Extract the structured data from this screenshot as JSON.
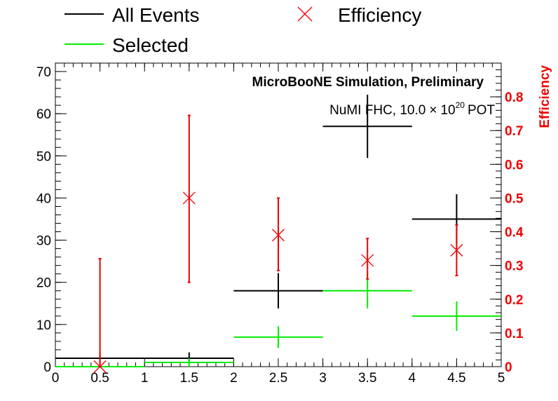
{
  "chart_data": {
    "type": "scatter",
    "legend": {
      "placement": "top",
      "entries": [
        {
          "label": "All Events",
          "marker": "line",
          "color": "#000000"
        },
        {
          "label": "Efficiency",
          "marker": "cross",
          "color": "#ee0000"
        },
        {
          "label": "Selected",
          "marker": "line",
          "color": "#00ee00"
        }
      ]
    },
    "annotations": {
      "title": "MicroBooNE Simulation, Preliminary",
      "pot_prefix": "NuMI FHC, 10.0",
      "pot_times": "×",
      "pot_base": "10",
      "pot_exp": "20",
      "pot_suffix": "POT"
    },
    "x_axis": {
      "range": [
        0,
        5
      ],
      "ticks": [
        "0",
        "0.5",
        "1",
        "1.5",
        "2",
        "2.5",
        "3",
        "3.5",
        "4",
        "4.5",
        "5"
      ]
    },
    "y_axis_left": {
      "range": [
        0,
        72
      ],
      "ticks": [
        "0",
        "10",
        "20",
        "30",
        "40",
        "50",
        "60",
        "70"
      ]
    },
    "y_axis_right": {
      "label": "Efficiency",
      "range": [
        0,
        0.9
      ],
      "ticks": [
        "0",
        "0.1",
        "0.2",
        "0.3",
        "0.4",
        "0.5",
        "0.6",
        "0.7",
        "0.8"
      ],
      "color": "#ee0000"
    },
    "series": [
      {
        "name": "All Events",
        "axis": "left",
        "color": "#000000",
        "bins": [
          {
            "x0": 0,
            "x1": 1,
            "y": 2,
            "err": 1.4
          },
          {
            "x0": 1,
            "x1": 2,
            "y": 2,
            "err": 1.4
          },
          {
            "x0": 2,
            "x1": 3,
            "y": 18,
            "err": 4.2
          },
          {
            "x0": 3,
            "x1": 4,
            "y": 57,
            "err": 7.5
          },
          {
            "x0": 4,
            "x1": 5,
            "y": 35,
            "err": 5.9
          }
        ]
      },
      {
        "name": "Selected",
        "axis": "left",
        "color": "#00ee00",
        "bins": [
          {
            "x0": 0,
            "x1": 1,
            "y": 0,
            "err": 0
          },
          {
            "x0": 1,
            "x1": 2,
            "y": 1,
            "err": 1
          },
          {
            "x0": 2,
            "x1": 3,
            "y": 7,
            "err": 2.6
          },
          {
            "x0": 3,
            "x1": 4,
            "y": 18,
            "err": 4.2
          },
          {
            "x0": 4,
            "x1": 5,
            "y": 12,
            "err": 3.5
          }
        ]
      },
      {
        "name": "Efficiency",
        "axis": "right",
        "color": "#ee0000",
        "points": [
          {
            "x": 0.5,
            "y": 0.0,
            "lo": 0.0,
            "hi": 0.32
          },
          {
            "x": 1.5,
            "y": 0.5,
            "lo": 0.25,
            "hi": 0.745
          },
          {
            "x": 2.5,
            "y": 0.39,
            "lo": 0.285,
            "hi": 0.5
          },
          {
            "x": 3.5,
            "y": 0.315,
            "lo": 0.26,
            "hi": 0.38
          },
          {
            "x": 4.5,
            "y": 0.345,
            "lo": 0.27,
            "hi": 0.42
          }
        ]
      }
    ]
  }
}
